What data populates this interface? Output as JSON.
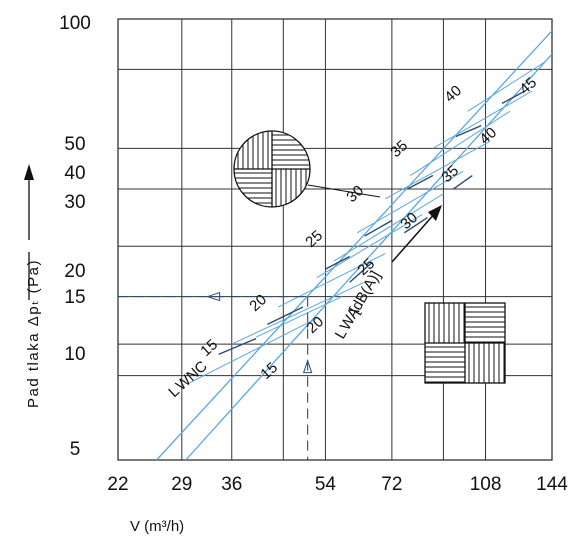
{
  "chart_data": {
    "type": "line",
    "title": "",
    "xlabel": "V (m³/h)",
    "ylabel": "Pad tlaka Δpₜ (Pa)",
    "x_scale": "log",
    "y_scale": "log",
    "xlim": [
      22,
      144
    ],
    "ylim": [
      4.4,
      100
    ],
    "grid": true,
    "x_ticks": [
      "22",
      "29",
      "36",
      "54",
      "72",
      "108",
      "144"
    ],
    "y_ticks": [
      "100",
      "50",
      "40",
      "30",
      "20",
      "15",
      "10",
      "5"
    ],
    "series": [
      {
        "name": "",
        "points": [
          [
            26,
            4.4
          ],
          [
            144,
            92
          ]
        ]
      },
      {
        "name": "",
        "points": [
          [
            29.5,
            4.4
          ],
          [
            144,
            78
          ]
        ]
      }
    ],
    "level_labels_upper": [
      "15",
      "20",
      "25",
      "30",
      "35",
      "40",
      "45"
    ],
    "level_labels_lower": [
      "15",
      "20",
      "25",
      "30",
      "35",
      "40"
    ],
    "annotations": {
      "lwnc": "L",
      "lwnc_sub": "WNC",
      "lwa_prefix": "L",
      "lwa_sub": "WA",
      "lwa_text": "[dB(A)]"
    },
    "example": {
      "x": 50,
      "y": 14
    }
  }
}
